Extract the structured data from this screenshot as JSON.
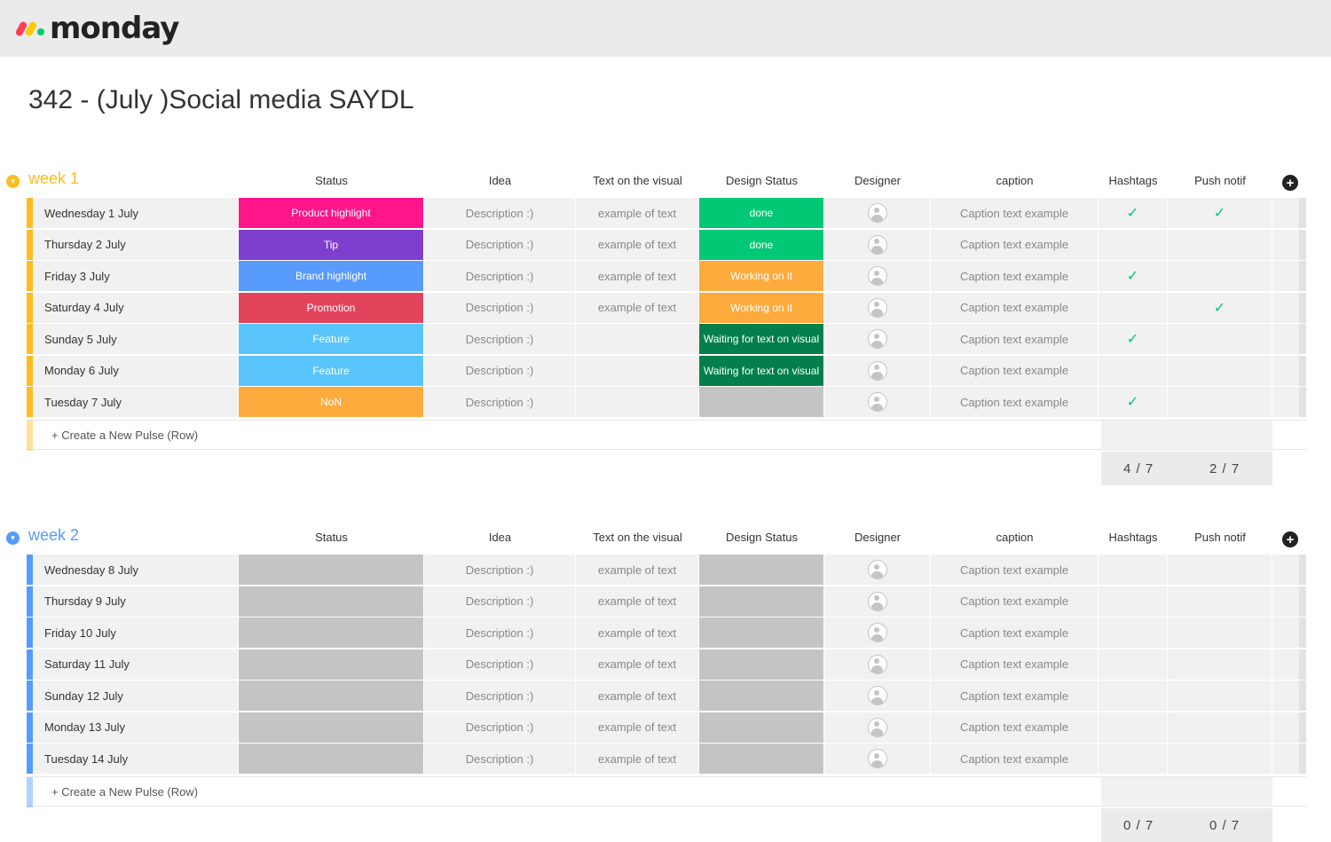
{
  "app": {
    "logo_text": "monday",
    "logo_colors": [
      "#ff3d57",
      "#ffcb00",
      "#00ca72"
    ]
  },
  "board": {
    "title": "342 - (July )Social media SAYDL"
  },
  "columns": {
    "status": "Status",
    "idea": "Idea",
    "text_on_visual": "Text on the visual",
    "design_status": "Design Status",
    "designer": "Designer",
    "caption": "caption",
    "hashtags": "Hashtags",
    "push_notif": "Push notif"
  },
  "create_row_label": "+ Create a New Pulse (Row)",
  "groups": [
    {
      "name": "week 1",
      "color": "#fdbc1f",
      "rows": [
        {
          "name": "Wednesday 1 July",
          "status": "Product highlight",
          "status_color": "#ff158a",
          "idea": "Description :)",
          "text_on_visual": "example of text",
          "design_status": "done",
          "design_color": "#00c875",
          "caption": "Caption text example",
          "hashtags": true,
          "push": true
        },
        {
          "name": "Thursday 2 July",
          "status": "Tip",
          "status_color": "#7e3fcf",
          "idea": "Description :)",
          "text_on_visual": "example of text",
          "design_status": "done",
          "design_color": "#00c875",
          "caption": "Caption text example",
          "hashtags": false,
          "push": false
        },
        {
          "name": "Friday 3 July",
          "status": "Brand highlight",
          "status_color": "#579bfc",
          "idea": "Description :)",
          "text_on_visual": "example of text",
          "design_status": "Working on it",
          "design_color": "#fdab3d",
          "caption": "Caption text example",
          "hashtags": true,
          "push": false
        },
        {
          "name": "Saturday 4 July",
          "status": "Promotion",
          "status_color": "#e2445c",
          "idea": "Description :)",
          "text_on_visual": "example of text",
          "design_status": "Working on it",
          "design_color": "#fdab3d",
          "caption": "Caption text example",
          "hashtags": false,
          "push": true
        },
        {
          "name": "Sunday 5 July",
          "status": "Feature",
          "status_color": "#5ac4fc",
          "idea": "Description :)",
          "text_on_visual": "",
          "design_status": "Waiting for text on visual",
          "design_color": "#037f4c",
          "caption": "Caption text example",
          "hashtags": true,
          "push": false
        },
        {
          "name": "Monday 6 July",
          "status": "Feature",
          "status_color": "#5ac4fc",
          "idea": "Description :)",
          "text_on_visual": "",
          "design_status": "Waiting for text on visual",
          "design_color": "#037f4c",
          "caption": "Caption text example",
          "hashtags": false,
          "push": false
        },
        {
          "name": "Tuesday 7 July",
          "status": "NoN",
          "status_color": "#fdab3d",
          "idea": "Description :)",
          "text_on_visual": "",
          "design_status": "",
          "design_color": "#c4c4c4",
          "caption": "Caption text example",
          "hashtags": true,
          "push": false
        }
      ],
      "summary": {
        "hashtags": "4 / 7",
        "push": "2 / 7"
      }
    },
    {
      "name": "week 2",
      "color": "#579bfc",
      "rows": [
        {
          "name": "Wednesday 8 July",
          "status": "",
          "status_color": "#c4c4c4",
          "idea": "Description :)",
          "text_on_visual": "example of text",
          "design_status": "",
          "design_color": "#c4c4c4",
          "caption": "Caption text example",
          "hashtags": false,
          "push": false
        },
        {
          "name": "Thursday 9 July",
          "status": "",
          "status_color": "#c4c4c4",
          "idea": "Description :)",
          "text_on_visual": "example of text",
          "design_status": "",
          "design_color": "#c4c4c4",
          "caption": "Caption text example",
          "hashtags": false,
          "push": false
        },
        {
          "name": "Friday 10 July",
          "status": "",
          "status_color": "#c4c4c4",
          "idea": "Description :)",
          "text_on_visual": "example of text",
          "design_status": "",
          "design_color": "#c4c4c4",
          "caption": "Caption text example",
          "hashtags": false,
          "push": false
        },
        {
          "name": "Saturday 11 July",
          "status": "",
          "status_color": "#c4c4c4",
          "idea": "Description :)",
          "text_on_visual": "example of text",
          "design_status": "",
          "design_color": "#c4c4c4",
          "caption": "Caption text example",
          "hashtags": false,
          "push": false
        },
        {
          "name": "Sunday 12 July",
          "status": "",
          "status_color": "#c4c4c4",
          "idea": "Description :)",
          "text_on_visual": "example of text",
          "design_status": "",
          "design_color": "#c4c4c4",
          "caption": "Caption text example",
          "hashtags": false,
          "push": false
        },
        {
          "name": "Monday 13 July",
          "status": "",
          "status_color": "#c4c4c4",
          "idea": "Description :)",
          "text_on_visual": "example of text",
          "design_status": "",
          "design_color": "#c4c4c4",
          "caption": "Caption text example",
          "hashtags": false,
          "push": false
        },
        {
          "name": "Tuesday 14 July",
          "status": "",
          "status_color": "#c4c4c4",
          "idea": "Description :)",
          "text_on_visual": "example of text",
          "design_status": "",
          "design_color": "#c4c4c4",
          "caption": "Caption text example",
          "hashtags": false,
          "push": false
        }
      ],
      "summary": {
        "hashtags": "0 / 7",
        "push": "0 / 7"
      }
    }
  ]
}
